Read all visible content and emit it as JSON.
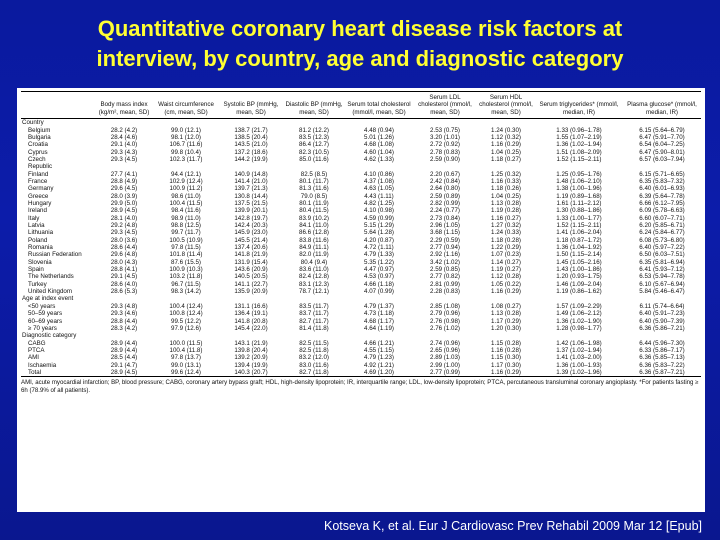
{
  "title_line1": "Quantitative coronary heart disease risk factors at",
  "title_line2": "interview, by country, age and diagnostic category",
  "headers": [
    "",
    "Body mass index (kg/m², mean, SD)",
    "Waist circumference (cm, mean, SD)",
    "Systolic BP (mmHg, mean, SD)",
    "Diastolic BP (mmHg, mean, SD)",
    "Serum total cholesterol (mmol/l, mean, SD)",
    "Serum LDL cholesterol (mmol/l, mean, SD)",
    "Serum HDL cholesterol (mmol/l, mean, SD)",
    "Serum triglycerides* (mmol/l, median, IR)",
    "Plasma glucose* (mmol/l, median, IR)"
  ],
  "rows": [
    {
      "label": "Country",
      "type": "section",
      "cells": []
    },
    {
      "label": "Belgium",
      "type": "row",
      "cells": [
        "28.2 (4.2)",
        "99.0 (12.1)",
        "138.7 (21.7)",
        "81.2 (12.2)",
        "4.48 (0.94)",
        "2.53 (0.75)",
        "1.24 (0.30)",
        "1.33 (0.96–1.78)",
        "6.15 (5.64–6.79)"
      ]
    },
    {
      "label": "Bulgaria",
      "type": "row",
      "cells": [
        "28.4 (4.6)",
        "98.1 (12.0)",
        "138.5 (20.4)",
        "83.5 (12.3)",
        "5.01 (1.26)",
        "3.20 (1.01)",
        "1.12 (0.32)",
        "1.55 (1.07–2.19)",
        "6.47 (5.91–7.70)"
      ]
    },
    {
      "label": "Croatia",
      "type": "row",
      "cells": [
        "29.1 (4.0)",
        "106.7 (11.6)",
        "143.5 (21.0)",
        "86.4 (12.7)",
        "4.68 (1.08)",
        "2.72 (0.92)",
        "1.16 (0.29)",
        "1.36 (1.02–1.94)",
        "6.54 (6.04–7.25)"
      ]
    },
    {
      "label": "Cyprus",
      "type": "row",
      "cells": [
        "29.3 (4.3)",
        "99.8 (10.4)",
        "137.2 (18.6)",
        "82.3 (10.5)",
        "4.60 (1.04)",
        "2.78 (0.83)",
        "1.04 (0.25)",
        "1.51 (1.08–2.09)",
        "6.47 (5.90–8.01)"
      ]
    },
    {
      "label": "Czech",
      "type": "row",
      "cells": [
        "29.3 (4.5)",
        "102.3 (11.7)",
        "144.2 (19.9)",
        "85.0 (11.6)",
        "4.62 (1.33)",
        "2.59 (0.90)",
        "1.18 (0.27)",
        "1.52 (1.15–2.11)",
        "6.57 (6.03–7.94)"
      ]
    },
    {
      "label": "Republic",
      "type": "row",
      "cells": [
        "",
        "",
        "",
        "",
        "",
        "",
        "",
        "",
        ""
      ]
    },
    {
      "label": "Finland",
      "type": "row",
      "cells": [
        "27.7 (4.1)",
        "94.4 (12.1)",
        "140.9 (14.8)",
        "82.5 (8.5)",
        "4.10 (0.86)",
        "2.20 (0.67)",
        "1.25 (0.32)",
        "1.25 (0.95–1.76)",
        "6.15 (5.71–6.65)"
      ]
    },
    {
      "label": "France",
      "type": "row",
      "cells": [
        "28.8 (4.9)",
        "102.9 (12.4)",
        "141.4 (21.0)",
        "80.1 (11.7)",
        "4.37 (1.08)",
        "2.42 (0.84)",
        "1.16 (0.33)",
        "1.48 (1.06–2.10)",
        "6.35 (5.83–7.32)"
      ]
    },
    {
      "label": "Germany",
      "type": "row",
      "cells": [
        "29.6 (4.5)",
        "100.9 (11.2)",
        "139.7 (21.3)",
        "81.3 (11.6)",
        "4.63 (1.05)",
        "2.64 (0.80)",
        "1.18 (0.26)",
        "1.38 (1.00–1.96)",
        "6.40 (6.01–6.93)"
      ]
    },
    {
      "label": "Greece",
      "type": "row",
      "cells": [
        "28.0 (3.9)",
        "98.6 (11.0)",
        "130.8 (14.4)",
        "79.0 (8.5)",
        "4.43 (1.11)",
        "2.59 (0.89)",
        "1.04 (0.25)",
        "1.19 (0.89–1.68)",
        "6.39 (5.64–7.78)"
      ]
    },
    {
      "label": "Hungary",
      "type": "row",
      "cells": [
        "29.9 (5.0)",
        "100.4 (11.5)",
        "137.5 (21.5)",
        "80.1 (11.9)",
        "4.82 (1.25)",
        "2.82 (0.99)",
        "1.13 (0.28)",
        "1.61 (1.11–2.12)",
        "6.66 (6.12–7.95)"
      ]
    },
    {
      "label": "Ireland",
      "type": "row",
      "cells": [
        "28.9 (4.5)",
        "98.4 (11.6)",
        "139.9 (20.1)",
        "80.4 (11.5)",
        "4.10 (0.98)",
        "2.24 (0.77)",
        "1.19 (0.28)",
        "1.30 (0.88–1.86)",
        "6.09 (5.78–6.63)"
      ]
    },
    {
      "label": "Italy",
      "type": "row",
      "cells": [
        "28.1 (4.0)",
        "98.9 (11.0)",
        "142.8 (19.7)",
        "83.9 (10.2)",
        "4.59 (0.99)",
        "2.73 (0.84)",
        "1.16 (0.27)",
        "1.33 (1.00–1.77)",
        "6.60 (6.07–7.71)"
      ]
    },
    {
      "label": "Latvia",
      "type": "row",
      "cells": [
        "29.2 (4.8)",
        "98.8 (12.5)",
        "142.4 (20.3)",
        "84.1 (11.0)",
        "5.15 (1.29)",
        "2.96 (1.05)",
        "1.27 (0.32)",
        "1.52 (1.15–2.11)",
        "6.20 (5.85–6.71)"
      ]
    },
    {
      "label": "Lithuania",
      "type": "row",
      "cells": [
        "29.3 (4.5)",
        "99.7 (11.7)",
        "145.9 (23.0)",
        "86.6 (12.8)",
        "5.64 (1.28)",
        "3.68 (1.15)",
        "1.24 (0.33)",
        "1.41 (1.06–2.04)",
        "6.24 (5.84–6.77)"
      ]
    },
    {
      "label": "Poland",
      "type": "row",
      "cells": [
        "28.0 (3.6)",
        "100.5 (10.9)",
        "145.5 (21.4)",
        "83.8 (11.6)",
        "4.20 (0.87)",
        "2.29 (0.59)",
        "1.18 (0.28)",
        "1.18 (0.87–1.72)",
        "6.08 (5.73–6.80)"
      ]
    },
    {
      "label": "Romania",
      "type": "row",
      "cells": [
        "28.6 (4.4)",
        "97.8 (11.5)",
        "137.4 (20.6)",
        "84.9 (11.1)",
        "4.72 (1.11)",
        "2.77 (0.94)",
        "1.22 (0.29)",
        "1.36 (1.04–1.92)",
        "6.40 (5.97–7.22)"
      ]
    },
    {
      "label": "Russian Federation",
      "type": "row",
      "cells": [
        "29.6 (4.8)",
        "101.8 (11.4)",
        "141.8 (21.9)",
        "82.0 (11.9)",
        "4.79 (1.33)",
        "2.92 (1.16)",
        "1.07 (0.23)",
        "1.50 (1.15–2.14)",
        "6.50 (6.03–7.51)"
      ]
    },
    {
      "label": "Slovenia",
      "type": "row",
      "cells": [
        "28.0 (4.3)",
        "87.6 (15.5)",
        "131.9 (15.4)",
        "80.4 (9.4)",
        "5.35 (1.22)",
        "3.42 (1.02)",
        "1.14 (0.27)",
        "1.45 (1.05–2.16)",
        "6.35 (5.81–6.94)"
      ]
    },
    {
      "label": "Spain",
      "type": "row",
      "cells": [
        "28.8 (4.1)",
        "100.9 (10.3)",
        "143.6 (20.9)",
        "83.6 (11.0)",
        "4.47 (0.97)",
        "2.59 (0.85)",
        "1.19 (0.27)",
        "1.43 (1.00–1.86)",
        "6.41 (5.93–7.12)"
      ]
    },
    {
      "label": "The Netherlands",
      "type": "row",
      "cells": [
        "29.1 (4.5)",
        "103.2 (11.8)",
        "140.5 (20.5)",
        "82.4 (12.8)",
        "4.53 (0.97)",
        "2.77 (0.82)",
        "1.12 (0.28)",
        "1.20 (0.93–1.75)",
        "6.53 (5.94–7.78)"
      ]
    },
    {
      "label": "Turkey",
      "type": "row",
      "cells": [
        "28.6 (4.0)",
        "96.7 (11.5)",
        "141.1 (22.7)",
        "83.1 (12.3)",
        "4.66 (1.18)",
        "2.81 (0.99)",
        "1.05 (0.22)",
        "1.46 (1.09–2.04)",
        "6.10 (5.67–6.94)"
      ]
    },
    {
      "label": "United Kingdom",
      "type": "row",
      "cells": [
        "28.6 (5.3)",
        "98.3 (14.2)",
        "135.9 (20.9)",
        "78.7 (12.1)",
        "4.07 (0.99)",
        "2.28 (0.83)",
        "1.16 (0.29)",
        "1.19 (0.86–1.62)",
        "5.84 (5.46–6.47)"
      ]
    },
    {
      "label": "Age at index event",
      "type": "section",
      "cells": []
    },
    {
      "label": "<50 years",
      "type": "row",
      "cells": [
        "29.3 (4.8)",
        "100.4 (12.4)",
        "131.1 (16.6)",
        "83.5 (11.7)",
        "4.79 (1.37)",
        "2.85 (1.08)",
        "1.08 (0.27)",
        "1.57 (1.09–2.29)",
        "6.11 (5.74–6.64)"
      ]
    },
    {
      "label": "50–59 years",
      "type": "row",
      "cells": [
        "29.3 (4.6)",
        "100.8 (12.4)",
        "136.4 (19.1)",
        "83.7 (11.7)",
        "4.73 (1.18)",
        "2.79 (0.96)",
        "1.13 (0.28)",
        "1.49 (1.06–2.12)",
        "6.40 (5.91–7.23)"
      ]
    },
    {
      "label": "60–69 years",
      "type": "row",
      "cells": [
        "28.8 (4.4)",
        "99.5 (12.2)",
        "141.8 (20.8)",
        "82.7 (11.7)",
        "4.68 (1.17)",
        "2.76 (0.98)",
        "1.17 (0.29)",
        "1.36 (1.02–1.90)",
        "6.40 (5.90–7.39)"
      ]
    },
    {
      "label": "≥ 70 years",
      "type": "row",
      "cells": [
        "28.3 (4.2)",
        "97.9 (12.6)",
        "145.4 (22.0)",
        "81.4 (11.8)",
        "4.64 (1.19)",
        "2.76 (1.02)",
        "1.20 (0.30)",
        "1.28 (0.98–1.77)",
        "6.36 (5.86–7.21)"
      ]
    },
    {
      "label": "Diagnostic category",
      "type": "section",
      "cells": []
    },
    {
      "label": "CABG",
      "type": "row",
      "cells": [
        "28.9 (4.4)",
        "100.0 (11.5)",
        "143.1 (21.9)",
        "82.5 (11.5)",
        "4.66 (1.21)",
        "2.74 (0.96)",
        "1.15 (0.28)",
        "1.42 (1.06–1.98)",
        "6.44 (5.96–7.30)"
      ]
    },
    {
      "label": "PTCA",
      "type": "row",
      "cells": [
        "28.9 (4.4)",
        "100.4 (11.8)",
        "139.8 (20.4)",
        "82.5 (11.8)",
        "4.55 (1.15)",
        "2.65 (0.96)",
        "1.16 (0.28)",
        "1.37 (1.02–1.94)",
        "6.33 (5.86–7.17)"
      ]
    },
    {
      "label": "AMI",
      "type": "row",
      "cells": [
        "28.5 (4.4)",
        "97.8 (13.7)",
        "139.2 (20.9)",
        "83.2 (12.0)",
        "4.79 (1.23)",
        "2.89 (1.03)",
        "1.15 (0.30)",
        "1.41 (1.03–2.00)",
        "6.36 (5.85–7.13)"
      ]
    },
    {
      "label": "Ischaemia",
      "type": "row",
      "cells": [
        "29.1 (4.7)",
        "99.0 (13.1)",
        "139.4 (19.9)",
        "83.0 (11.6)",
        "4.92 (1.21)",
        "2.99 (1.00)",
        "1.17 (0.30)",
        "1.36 (1.00–1.93)",
        "6.36 (5.83–7.22)"
      ]
    },
    {
      "label": "Total",
      "type": "row",
      "cells": [
        "28.9 (4.5)",
        "99.6 (12.4)",
        "140.3 (20.7)",
        "82.7 (11.8)",
        "4.69 (1.20)",
        "2.77 (0.99)",
        "1.16 (0.29)",
        "1.39 (1.02–1.96)",
        "6.36 (5.87–7.21)"
      ]
    }
  ],
  "footnote": "AMI, acute myocardial infarction; BP, blood pressure; CABG, coronary artery bypass graft; HDL, high-density lipoprotein; IR, interquartile range; LDL, low-density lipoprotein; PTCA, percutaneous transluminal coronary angioplasty. *For patients fasting ≥ 6h (78.9% of all patients).",
  "citation": "Kotseva K, et al. Eur J Cardiovasc Prev Rehabil 2009 Mar 12 [Epub]"
}
